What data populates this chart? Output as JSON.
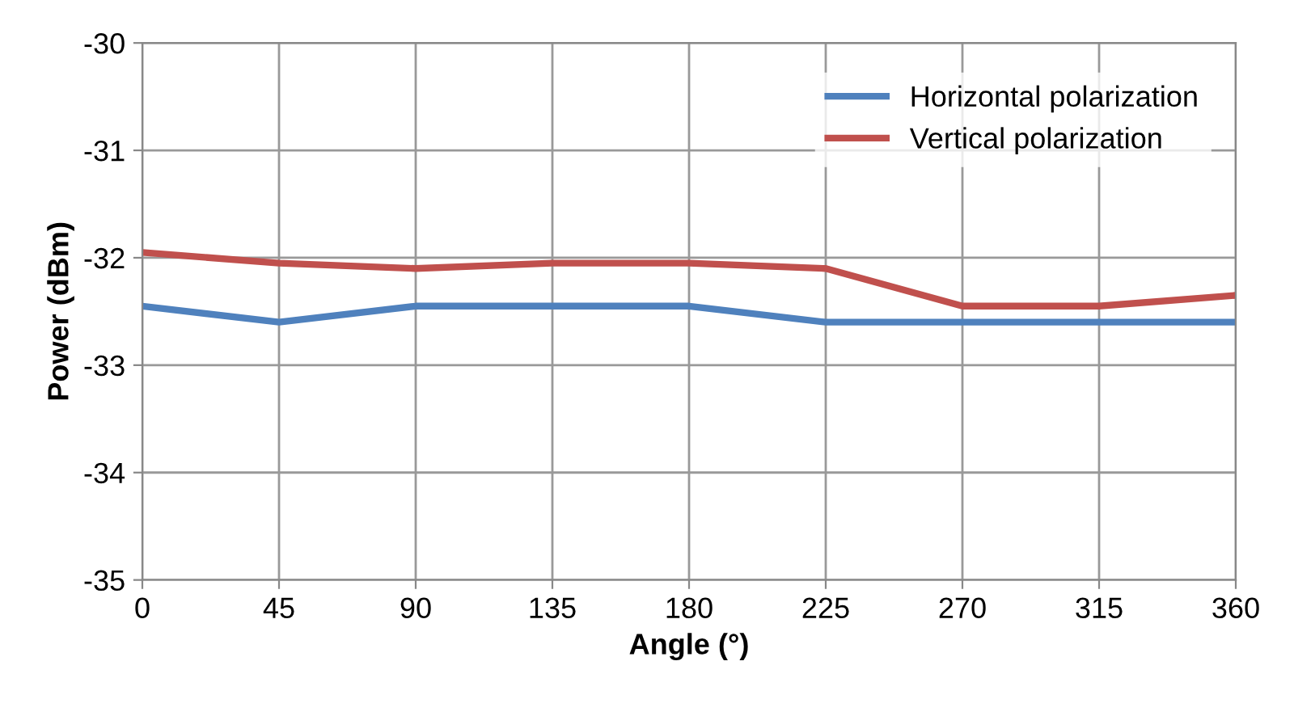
{
  "chart_data": {
    "type": "line",
    "xlabel": "Angle (°)",
    "ylabel": "Power (dBm)",
    "x": [
      0,
      45,
      90,
      135,
      180,
      225,
      270,
      315,
      360
    ],
    "series": [
      {
        "name": "Horizontal polarization",
        "color": "#4f81bd",
        "values": [
          -32.45,
          -32.6,
          -32.45,
          -32.45,
          -32.45,
          -32.6,
          -32.6,
          -32.6,
          -32.6
        ]
      },
      {
        "name": "Vertical polarization",
        "color": "#c0504d",
        "values": [
          -31.95,
          -32.05,
          -32.1,
          -32.05,
          -32.05,
          -32.1,
          -32.45,
          -32.45,
          -32.35
        ]
      }
    ],
    "xlim": [
      0,
      360
    ],
    "xticks": [
      0,
      45,
      90,
      135,
      180,
      225,
      270,
      315,
      360
    ],
    "ylim": [
      -35,
      -30
    ],
    "yticks": [
      -35,
      -34,
      -33,
      -32,
      -31,
      -30
    ],
    "grid": true,
    "legend": "top right",
    "marker": "none",
    "line_style": "solid"
  }
}
